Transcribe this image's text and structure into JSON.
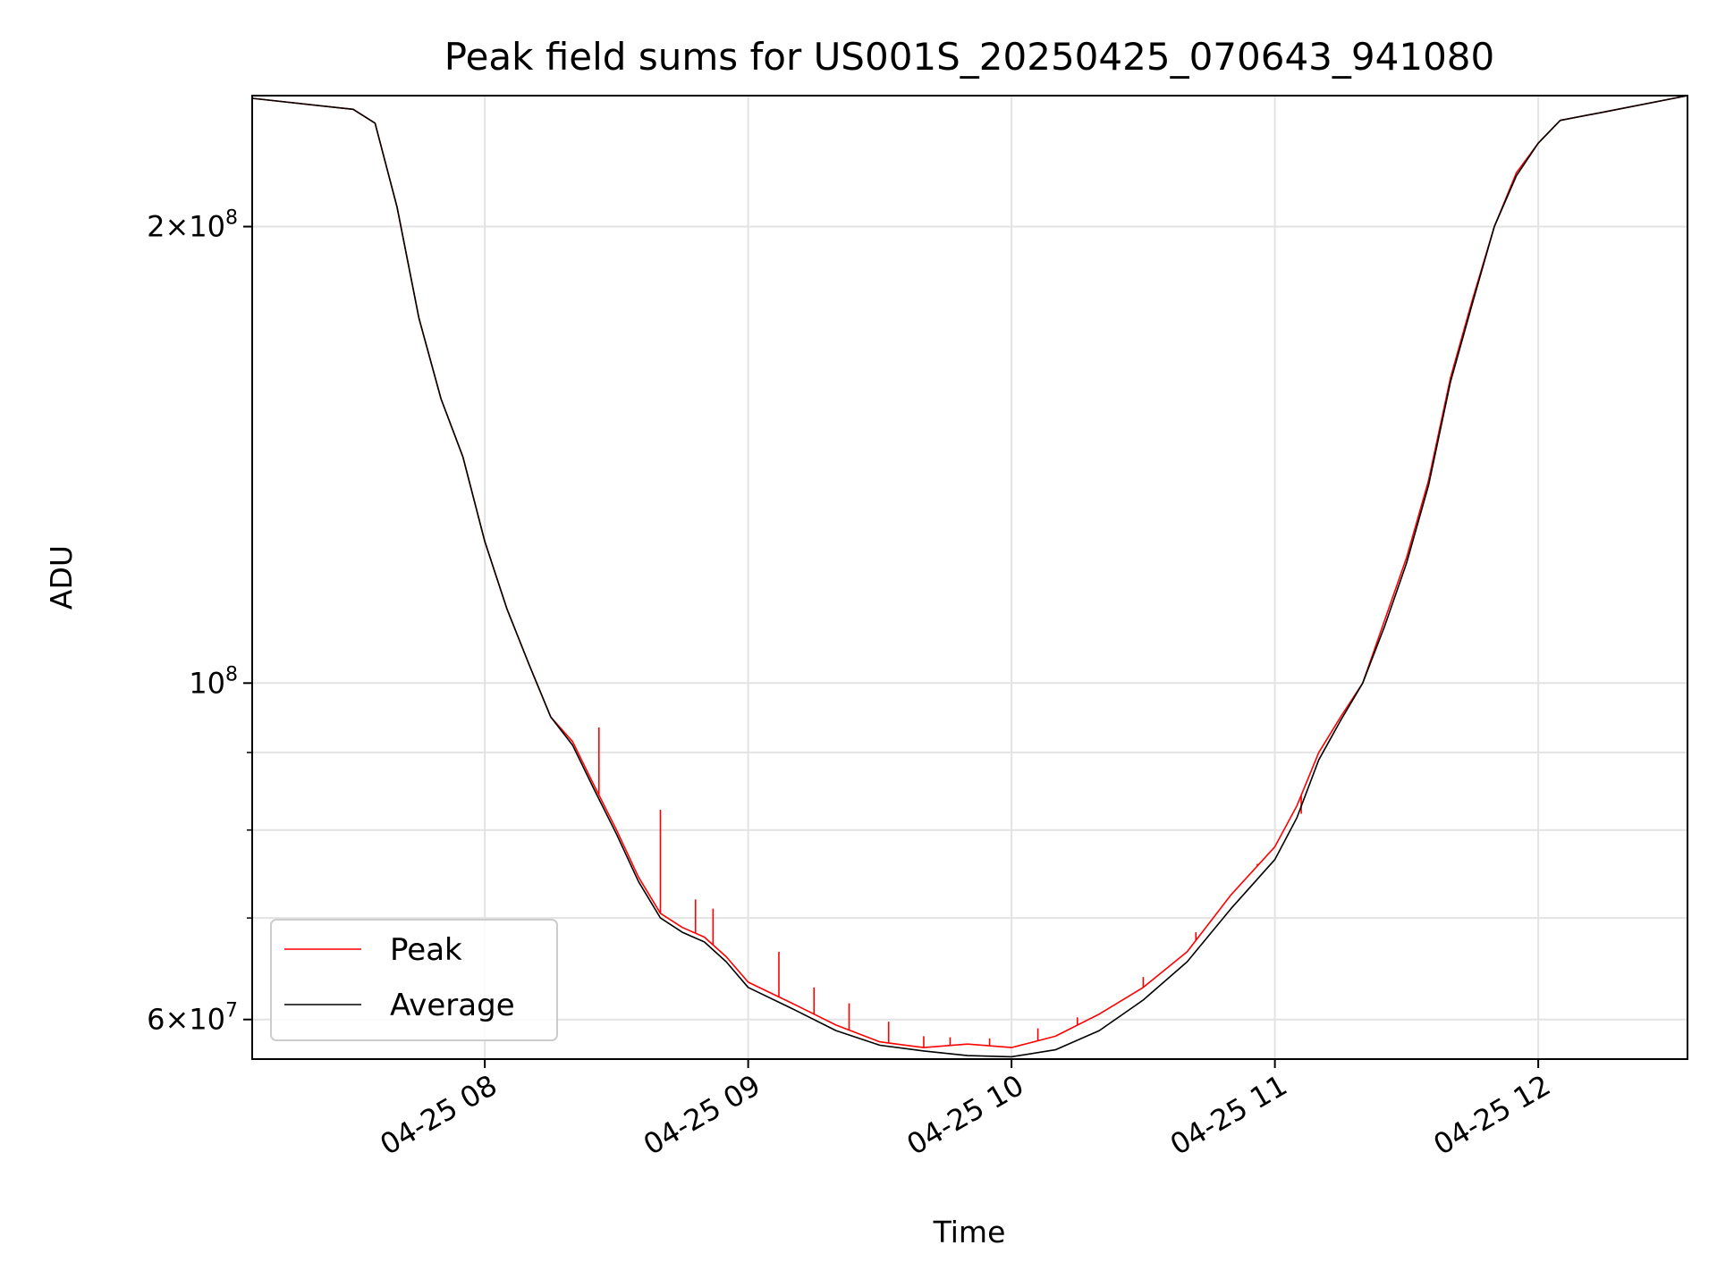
{
  "chart_data": {
    "type": "line",
    "title": "Peak field sums for US001S_20250425_070643_941080",
    "xlabel": "Time",
    "ylabel": "ADU",
    "y_scale": "log",
    "ylim": [
      56500000,
      244000000
    ],
    "xlim": [
      "2025-04-25 07:07",
      "2025-04-25 12:34"
    ],
    "grid": true,
    "legend_position": "lower-left",
    "x_ticks": [
      {
        "value": "2025-04-25 08:00",
        "label": "04-25 08"
      },
      {
        "value": "2025-04-25 09:00",
        "label": "04-25 09"
      },
      {
        "value": "2025-04-25 10:00",
        "label": "04-25 10"
      },
      {
        "value": "2025-04-25 11:00",
        "label": "04-25 11"
      },
      {
        "value": "2025-04-25 12:00",
        "label": "04-25 12"
      }
    ],
    "y_major_ticks": [
      {
        "value": 60000000,
        "mantissa": "6",
        "exponent": "7"
      },
      {
        "value": 100000000,
        "mantissa": "",
        "exponent": "8"
      },
      {
        "value": 200000000,
        "mantissa": "2",
        "exponent": "8"
      }
    ],
    "y_minor_ticks": [
      70000000,
      80000000,
      90000000
    ],
    "series": [
      {
        "name": "Peak",
        "color": "#ff0000",
        "x": [
          "2025-04-25 07:07",
          "2025-04-25 07:30",
          "2025-04-25 07:35",
          "2025-04-25 07:40",
          "2025-04-25 07:45",
          "2025-04-25 07:50",
          "2025-04-25 07:55",
          "2025-04-25 08:00",
          "2025-04-25 08:05",
          "2025-04-25 08:10",
          "2025-04-25 08:15",
          "2025-04-25 08:20",
          "2025-04-25 08:25",
          "2025-04-25 08:30",
          "2025-04-25 08:35",
          "2025-04-25 08:40",
          "2025-04-25 08:45",
          "2025-04-25 08:50",
          "2025-04-25 08:55",
          "2025-04-25 09:00",
          "2025-04-25 09:10",
          "2025-04-25 09:20",
          "2025-04-25 09:30",
          "2025-04-25 09:40",
          "2025-04-25 09:50",
          "2025-04-25 10:00",
          "2025-04-25 10:10",
          "2025-04-25 10:20",
          "2025-04-25 10:30",
          "2025-04-25 10:40",
          "2025-04-25 10:50",
          "2025-04-25 11:00",
          "2025-04-25 11:05",
          "2025-04-25 11:10",
          "2025-04-25 11:15",
          "2025-04-25 11:20",
          "2025-04-25 11:25",
          "2025-04-25 11:30",
          "2025-04-25 11:35",
          "2025-04-25 11:40",
          "2025-04-25 11:45",
          "2025-04-25 11:50",
          "2025-04-25 11:55",
          "2025-04-25 12:00",
          "2025-04-25 12:05",
          "2025-04-25 12:15",
          "2025-04-25 12:34"
        ],
        "values": [
          243000000,
          239000000,
          234000000,
          206000000,
          174000000,
          154000000,
          141000000,
          124000000,
          112000000,
          103000000,
          95000000,
          91500000,
          85500000,
          80000000,
          74500000,
          70500000,
          69000000,
          68000000,
          66000000,
          63500000,
          61500000,
          59500000,
          58000000,
          57500000,
          57800000,
          57500000,
          58500000,
          60500000,
          63000000,
          66500000,
          72500000,
          78000000,
          83000000,
          90000000,
          95000000,
          100000000,
          110000000,
          121000000,
          136000000,
          159000000,
          179000000,
          200000000,
          217000000,
          227000000,
          235000000,
          238000000,
          244000000
        ],
        "spikes": [
          [
            "2025-04-25 08:26",
            93500000
          ],
          [
            "2025-04-25 08:40",
            82500000
          ],
          [
            "2025-04-25 08:48",
            72000000
          ],
          [
            "2025-04-25 08:52",
            71000000
          ],
          [
            "2025-04-25 09:07",
            66500000
          ],
          [
            "2025-04-25 09:15",
            63000000
          ],
          [
            "2025-04-25 09:23",
            61500000
          ],
          [
            "2025-04-25 09:32",
            59800000
          ],
          [
            "2025-04-25 09:40",
            58500000
          ],
          [
            "2025-04-25 09:46",
            58400000
          ],
          [
            "2025-04-25 09:55",
            58300000
          ],
          [
            "2025-04-25 10:06",
            59200000
          ],
          [
            "2025-04-25 10:15",
            60200000
          ],
          [
            "2025-04-25 10:30",
            64000000
          ],
          [
            "2025-04-25 10:42",
            68500000
          ],
          [
            "2025-04-25 10:56",
            76000000
          ],
          [
            "2025-04-25 11:06",
            82000000
          ]
        ]
      },
      {
        "name": "Average",
        "color": "#000000",
        "x": [
          "2025-04-25 07:07",
          "2025-04-25 07:30",
          "2025-04-25 07:35",
          "2025-04-25 07:40",
          "2025-04-25 07:45",
          "2025-04-25 07:50",
          "2025-04-25 07:55",
          "2025-04-25 08:00",
          "2025-04-25 08:05",
          "2025-04-25 08:10",
          "2025-04-25 08:15",
          "2025-04-25 08:20",
          "2025-04-25 08:25",
          "2025-04-25 08:30",
          "2025-04-25 08:35",
          "2025-04-25 08:40",
          "2025-04-25 08:45",
          "2025-04-25 08:50",
          "2025-04-25 08:55",
          "2025-04-25 09:00",
          "2025-04-25 09:10",
          "2025-04-25 09:20",
          "2025-04-25 09:30",
          "2025-04-25 09:40",
          "2025-04-25 09:50",
          "2025-04-25 10:00",
          "2025-04-25 10:10",
          "2025-04-25 10:20",
          "2025-04-25 10:30",
          "2025-04-25 10:40",
          "2025-04-25 10:50",
          "2025-04-25 11:00",
          "2025-04-25 11:05",
          "2025-04-25 11:10",
          "2025-04-25 11:15",
          "2025-04-25 11:20",
          "2025-04-25 11:25",
          "2025-04-25 11:30",
          "2025-04-25 11:35",
          "2025-04-25 11:40",
          "2025-04-25 11:45",
          "2025-04-25 11:50",
          "2025-04-25 11:55",
          "2025-04-25 12:00",
          "2025-04-25 12:05",
          "2025-04-25 12:15",
          "2025-04-25 12:34"
        ],
        "values": [
          243000000,
          239000000,
          234000000,
          206000000,
          174000000,
          154000000,
          141000000,
          124000000,
          112000000,
          103000000,
          95000000,
          91000000,
          85000000,
          79500000,
          74000000,
          70000000,
          68500000,
          67500000,
          65500000,
          63000000,
          61000000,
          59000000,
          57700000,
          57200000,
          56800000,
          56700000,
          57300000,
          59000000,
          61800000,
          65500000,
          71000000,
          76500000,
          81500000,
          89000000,
          94500000,
          100000000,
          109000000,
          120000000,
          135000000,
          158000000,
          178000000,
          200000000,
          216000000,
          227000000,
          235000000,
          238000000,
          244000000
        ]
      }
    ]
  }
}
